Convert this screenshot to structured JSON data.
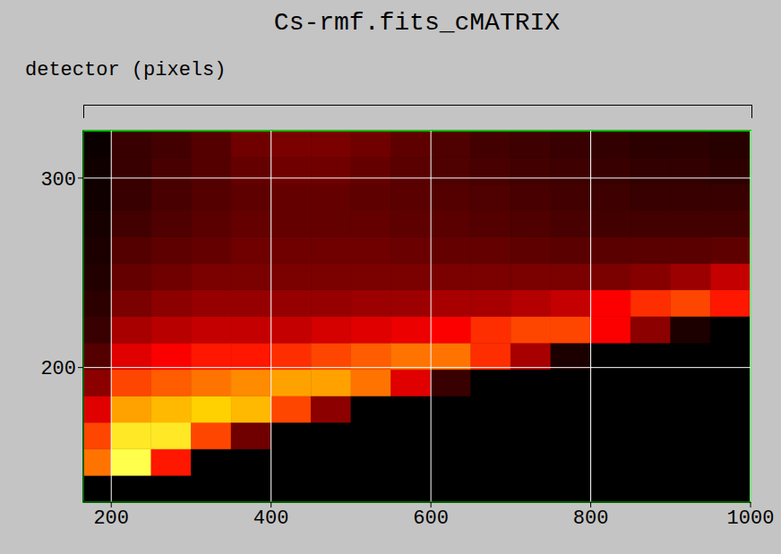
{
  "chart_data": {
    "type": "heatmap",
    "title": "Cs-rmf.fits_cMATRIX",
    "xlabel": "detector (pixels)",
    "xlim": [
      165,
      1000
    ],
    "xticks": [
      200,
      400,
      600,
      800,
      1000
    ],
    "ylim": [
      129,
      325
    ],
    "yticks": [
      200,
      300
    ],
    "grid": true,
    "x_bins": [
      165,
      200,
      250,
      300,
      350,
      400,
      450,
      500,
      550,
      600,
      650,
      700,
      750,
      800,
      850,
      900,
      950,
      1000
    ],
    "y_bins": [
      129,
      143,
      157,
      171,
      185,
      199,
      213,
      227,
      241,
      255,
      269,
      283,
      297,
      311,
      325
    ],
    "cells": [
      [
        0,
        0.7,
        0.6,
        0.4,
        0.25,
        0.15,
        0.1,
        0.08,
        0.06,
        0.05,
        0.04,
        0.03,
        0.03,
        0.02
      ],
      [
        0,
        1,
        0.95,
        0.8,
        0.6,
        0.4,
        0.3,
        0.22,
        0.18,
        0.15,
        0.12,
        0.1,
        0.1,
        0.1
      ],
      [
        0,
        0.5,
        0.95,
        0.85,
        0.65,
        0.45,
        0.33,
        0.25,
        0.2,
        0.17,
        0.14,
        0.13,
        0.13,
        0.12
      ],
      [
        0,
        0,
        0.6,
        0.9,
        0.7,
        0.5,
        0.35,
        0.27,
        0.22,
        0.18,
        0.16,
        0.15,
        0.15,
        0.15
      ],
      [
        0,
        0,
        0.2,
        0.85,
        0.75,
        0.5,
        0.35,
        0.27,
        0.22,
        0.2,
        0.18,
        0.17,
        0.18,
        0.2
      ],
      [
        0,
        0,
        0,
        0.6,
        0.8,
        0.55,
        0.35,
        0.27,
        0.22,
        0.2,
        0.18,
        0.18,
        0.2,
        0.22
      ],
      [
        0,
        0,
        0,
        0.25,
        0.8,
        0.6,
        0.38,
        0.27,
        0.22,
        0.2,
        0.18,
        0.18,
        0.2,
        0.22
      ],
      [
        0,
        0,
        0,
        0,
        0.7,
        0.65,
        0.4,
        0.28,
        0.22,
        0.2,
        0.18,
        0.17,
        0.18,
        0.2
      ],
      [
        0,
        0,
        0,
        0,
        0.4,
        0.7,
        0.42,
        0.28,
        0.22,
        0.19,
        0.17,
        0.16,
        0.16,
        0.17
      ],
      [
        0,
        0,
        0,
        0,
        0.1,
        0.7,
        0.45,
        0.3,
        0.22,
        0.18,
        0.16,
        0.15,
        0.14,
        0.14
      ],
      [
        0,
        0,
        0,
        0,
        0,
        0.55,
        0.55,
        0.3,
        0.22,
        0.18,
        0.15,
        0.14,
        0.13,
        0.12
      ],
      [
        0,
        0,
        0,
        0,
        0,
        0.3,
        0.6,
        0.32,
        0.22,
        0.17,
        0.14,
        0.13,
        0.12,
        0.11
      ],
      [
        0,
        0,
        0,
        0,
        0,
        0.05,
        0.6,
        0.35,
        0.22,
        0.16,
        0.13,
        0.12,
        0.11,
        0.1
      ],
      [
        0,
        0,
        0,
        0,
        0,
        0,
        0.45,
        0.45,
        0.22,
        0.16,
        0.12,
        0.11,
        0.1,
        0.09
      ],
      [
        0,
        0,
        0,
        0,
        0,
        0,
        0.25,
        0.55,
        0.24,
        0.16,
        0.12,
        0.1,
        0.09,
        0.08
      ],
      [
        0,
        0,
        0,
        0,
        0,
        0,
        0.05,
        0.6,
        0.28,
        0.16,
        0.12,
        0.1,
        0.09,
        0.08
      ],
      [
        0,
        0,
        0,
        0,
        0,
        0,
        0,
        0.5,
        0.35,
        0.17,
        0.12,
        0.1,
        0.08,
        0.07
      ]
    ]
  }
}
